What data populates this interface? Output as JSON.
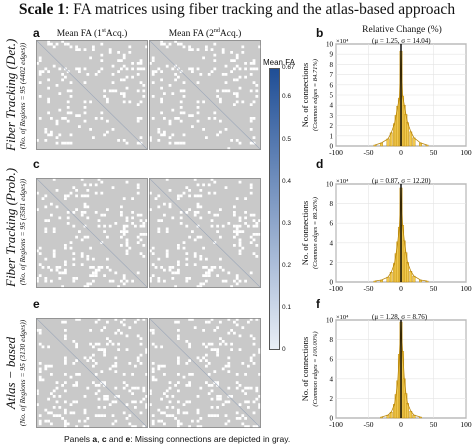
{
  "title": {
    "main": "Scale 1",
    "rest": ": FA matrices using fiber tracking and the atlas-based approach"
  },
  "columns": {
    "acq1": {
      "prefix": "Mean FA (1",
      "sup": "st",
      "suffix": "Acq.)"
    },
    "acq2": {
      "prefix": "Mean FA (2",
      "sup": "nd",
      "suffix": "Acq.)"
    },
    "hist": "Relative Change (%)"
  },
  "panel_letters": {
    "a": "a",
    "b": "b",
    "c": "c",
    "d": "d",
    "e": "e",
    "f": "f"
  },
  "rows": [
    {
      "label": "Fiber Tracking (Det.)",
      "sub": "(No. of Regions = 95 (4402 edges))"
    },
    {
      "label": "Fiber Tracking (Prob.)",
      "sub": "(No. of Regions = 95 (3581 edges))"
    },
    {
      "label": "Atlas − based",
      "sub": "(No. of Regions = 95 (3130 edges))"
    }
  ],
  "colorbar": {
    "title": "Mean FA",
    "ticks": [
      "0.67",
      "0.6",
      "0.5",
      "0.4",
      "0.3",
      "0.2",
      "0.1",
      "0"
    ],
    "max": 0.67,
    "colors": [
      "#e9eef6",
      "#1f4e96"
    ]
  },
  "footer": {
    "prefix": "Panels ",
    "a": "a",
    "sep1": ", ",
    "c": "c",
    "sep2": " and ",
    "e": "e",
    "suffix": ": Missing connections are depicted in gray."
  },
  "chart_data": [
    {
      "type": "bar",
      "panel": "b",
      "stats_label": "(μ = 1.25, σ = 14.04)",
      "ylabel": "No. of connections",
      "ylabel_sub": "(Common edges = 84.71%)",
      "y_multiplier": "×10⁴",
      "xlim": [
        -100,
        100
      ],
      "ylim": [
        0,
        10
      ],
      "yticks": [
        "0",
        "1",
        "2",
        "3",
        "4",
        "5",
        "6",
        "7",
        "8",
        "9",
        "10"
      ],
      "xticks": [
        "-100",
        "-50",
        "0",
        "50",
        "100"
      ],
      "x": [
        -40,
        -30,
        -20,
        -15,
        -10,
        -7.5,
        -5,
        -2.5,
        0,
        2.5,
        5,
        7.5,
        10,
        15,
        20,
        30,
        40
      ],
      "values": [
        0.1,
        0.3,
        0.7,
        1.3,
        2.2,
        3.0,
        3.9,
        4.7,
        9.3,
        4.9,
        4.0,
        3.1,
        2.3,
        1.4,
        0.8,
        0.3,
        0.1
      ]
    },
    {
      "type": "bar",
      "panel": "d",
      "stats_label": "(μ = 0.87, σ = 12.20)",
      "ylabel": "No. of connections",
      "ylabel_sub": "(Common edges = 89.26%)",
      "y_multiplier": "×10⁴",
      "xlim": [
        -100,
        100
      ],
      "ylim": [
        0,
        10
      ],
      "yticks": [
        "0",
        "2",
        "4",
        "6",
        "8",
        "10"
      ],
      "xticks": [
        "-100",
        "-50",
        "0",
        "50",
        "100"
      ],
      "x": [
        -40,
        -30,
        -20,
        -15,
        -10,
        -7.5,
        -5,
        -2.5,
        0,
        2.5,
        5,
        7.5,
        10,
        15,
        20,
        30,
        40
      ],
      "values": [
        0.1,
        0.2,
        0.5,
        1.0,
        1.9,
        2.9,
        4.1,
        5.6,
        9.6,
        5.8,
        4.2,
        3.0,
        2.0,
        1.1,
        0.6,
        0.2,
        0.1
      ]
    },
    {
      "type": "bar",
      "panel": "f",
      "stats_label": "(μ = 1.28, σ = 8.76)",
      "ylabel": "No. of connections",
      "ylabel_sub": "(Common edges = 100.00%)",
      "y_multiplier": "×10⁴",
      "xlim": [
        -100,
        100
      ],
      "ylim": [
        0,
        10
      ],
      "yticks": [
        "0",
        "2",
        "4",
        "6",
        "8",
        "10"
      ],
      "xticks": [
        "-100",
        "-50",
        "0",
        "50",
        "100"
      ],
      "x": [
        -30,
        -20,
        -15,
        -10,
        -7.5,
        -5,
        -2.5,
        0,
        2.5,
        5,
        7.5,
        10,
        15,
        20,
        30
      ],
      "values": [
        0.1,
        0.3,
        0.6,
        1.4,
        2.4,
        3.8,
        6.5,
        9.8,
        6.8,
        4.0,
        2.5,
        1.5,
        0.7,
        0.3,
        0.1
      ]
    }
  ]
}
